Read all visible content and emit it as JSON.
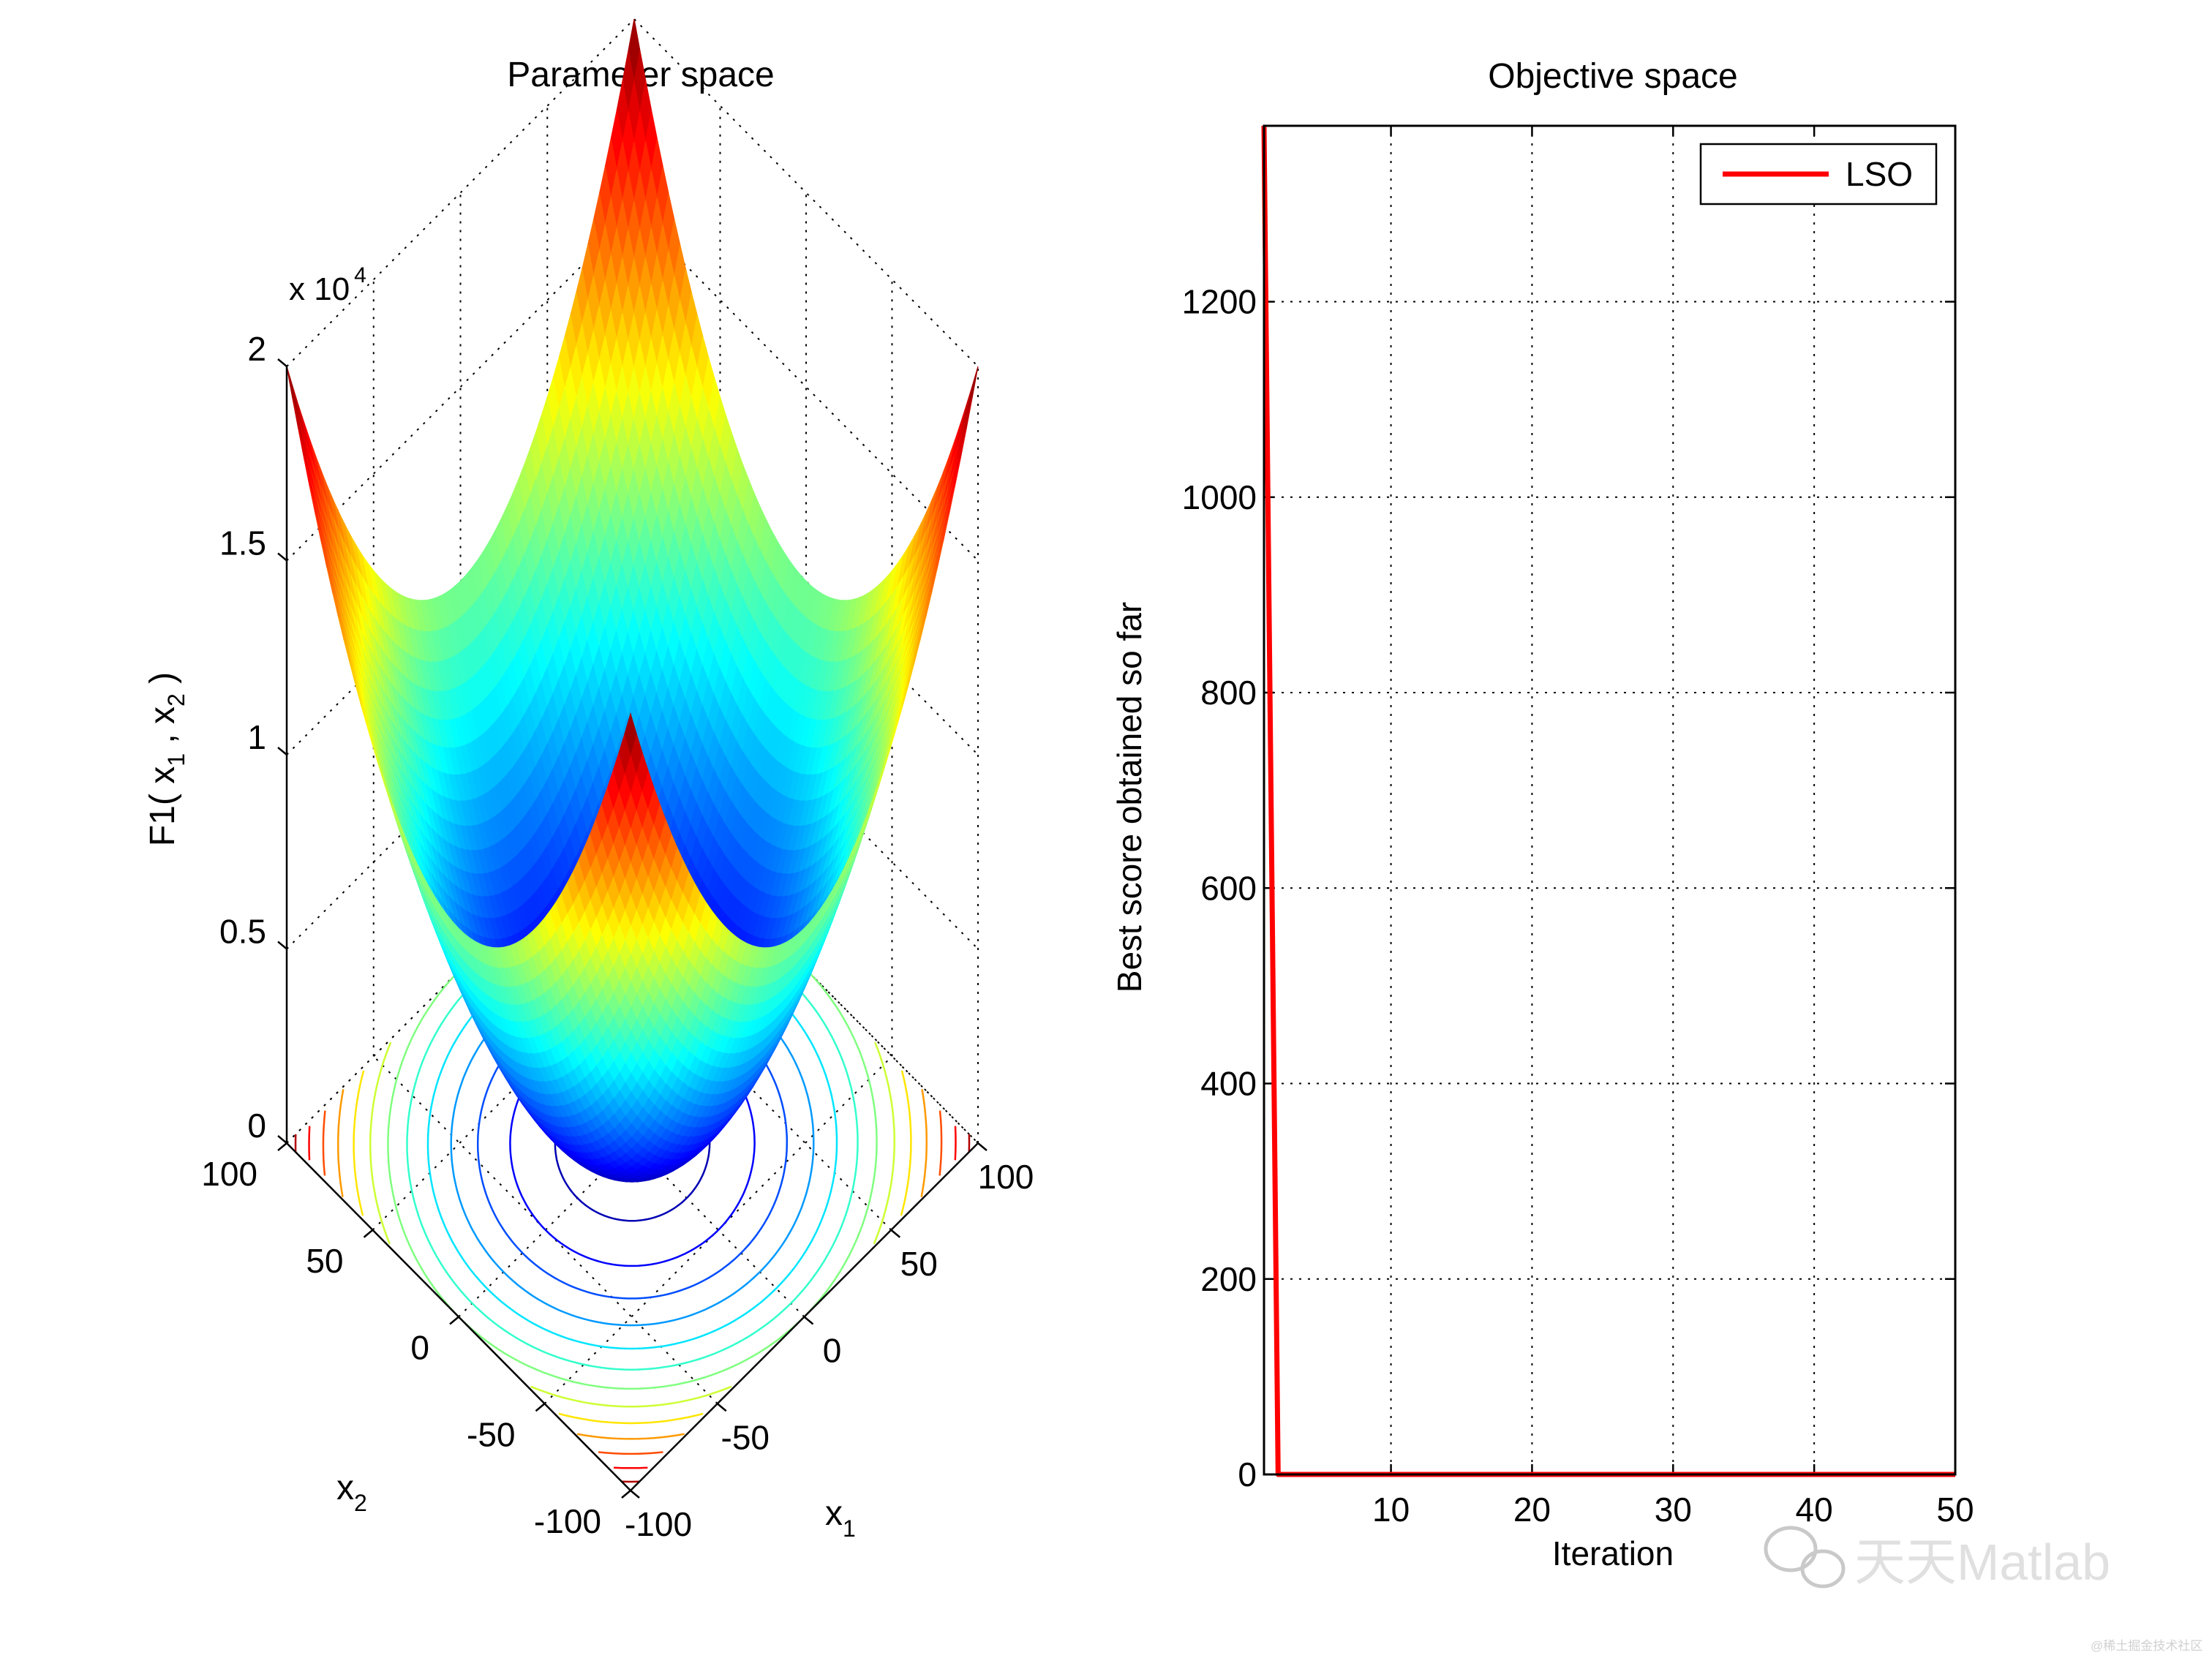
{
  "figure": {
    "background": "#ffffff",
    "watermark": {
      "text": "天天Matlab",
      "sub": "@稀土掘金技术社区"
    }
  },
  "chart_data": [
    {
      "type": "surface",
      "title": "Parameter space",
      "zlabel": "F1( x1 , x2 )",
      "zlabel_parts": {
        "prefix": "F1( x",
        "sub1": "1",
        "mid": " , x",
        "sub2": "2",
        "suffix": " )"
      },
      "xlabel": "x",
      "xlabel_sub": "1",
      "ylabel": "x",
      "ylabel_sub": "2",
      "function": "x1^2 + x2^2",
      "x_range": [
        -100,
        100
      ],
      "y_range": [
        -100,
        100
      ],
      "z_range": [
        0,
        20000
      ],
      "z_exponent_label": "x 10",
      "z_exponent_power": "4",
      "x_ticks": [
        "-100",
        "-50",
        "0",
        "50",
        "100"
      ],
      "y_ticks": [
        "-100",
        "-50",
        "0",
        "50",
        "100"
      ],
      "z_ticks": [
        "0",
        "0.5",
        "1",
        "1.5",
        "2"
      ],
      "colormap": "jet",
      "contour_levels": [
        1000,
        2500,
        4000,
        5500,
        7000,
        8500,
        10000,
        11500,
        13000,
        14500,
        16000,
        17500,
        19000
      ],
      "grid": true
    },
    {
      "type": "line",
      "title": "Objective space",
      "xlabel": "Iteration",
      "ylabel": "Best score obtained so far",
      "xlim": [
        1,
        50
      ],
      "ylim": [
        0,
        1380
      ],
      "x_ticks": [
        10,
        20,
        30,
        40,
        50
      ],
      "y_ticks": [
        0,
        200,
        400,
        600,
        800,
        1000,
        1200
      ],
      "grid": true,
      "legend_position": "top-right",
      "series": [
        {
          "name": "LSO",
          "color": "#ff0000",
          "x": [
            1,
            2,
            3,
            5,
            10,
            15,
            20,
            25,
            30,
            35,
            40,
            45,
            50
          ],
          "values": [
            1380,
            0,
            0,
            0,
            0,
            0,
            0,
            0,
            0,
            0,
            0,
            0,
            0
          ]
        }
      ]
    }
  ]
}
